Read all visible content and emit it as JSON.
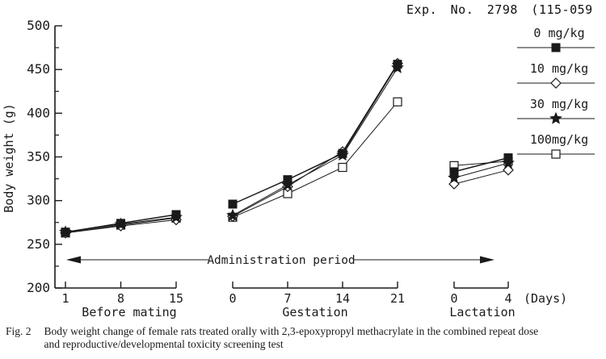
{
  "chart_data": {
    "type": "line",
    "title": "Exp. No. 2798 (115-059",
    "ylabel": "Body weight (g)",
    "xlabel": "(Days)",
    "ylim": [
      200,
      500
    ],
    "yticks": [
      500,
      450,
      400,
      350,
      300,
      250,
      200
    ],
    "y_minor_ticks": [
      475,
      425,
      375,
      325,
      275,
      225
    ],
    "grid": false,
    "legend_position": "right",
    "annotation": "Administration period",
    "sections": [
      {
        "id": "before_mating",
        "label": "Before mating",
        "days": [
          1,
          8,
          15
        ]
      },
      {
        "id": "gestation",
        "label": "Gestation",
        "days": [
          0,
          7,
          14,
          21
        ]
      },
      {
        "id": "lactation",
        "label": "Lactation",
        "days": [
          0,
          4
        ]
      }
    ],
    "series": [
      {
        "name": "0 mg/kg",
        "legend_label": "0 mg/kg",
        "marker": "filled-square",
        "values": {
          "before_mating": [
            264,
            274,
            284
          ],
          "gestation": [
            296,
            324,
            354,
            456
          ],
          "lactation": [
            333,
            349
          ]
        }
      },
      {
        "name": "10 mg/kg",
        "legend_label": "10 mg/kg",
        "marker": "open-diamond",
        "values": {
          "before_mating": [
            263,
            271,
            278
          ],
          "gestation": [
            282,
            316,
            356,
            457
          ],
          "lactation": [
            319,
            335
          ]
        }
      },
      {
        "name": "30 mg/kg",
        "legend_label": "30 mg/kg",
        "marker": "filled-star",
        "values": {
          "before_mating": [
            264,
            273,
            281
          ],
          "gestation": [
            283,
            318,
            352,
            452
          ],
          "lactation": [
            326,
            343
          ]
        }
      },
      {
        "name": "100 mg/kg",
        "legend_label": "100mg/kg",
        "marker": "open-square",
        "values": {
          "before_mating": [
            263,
            272,
            280
          ],
          "gestation": [
            281,
            308,
            338,
            413
          ],
          "lactation": [
            340,
            345
          ]
        }
      }
    ],
    "colors": {
      "ink": "#1a1a1a",
      "background": "#ffffff"
    }
  },
  "caption": {
    "fig_label": "Fig. 2",
    "text": "Body weight change of female rats treated orally with 2,3-epoxypropyl methacrylate in the combined repeat dose and reproductive/developmental toxicity screening test"
  }
}
